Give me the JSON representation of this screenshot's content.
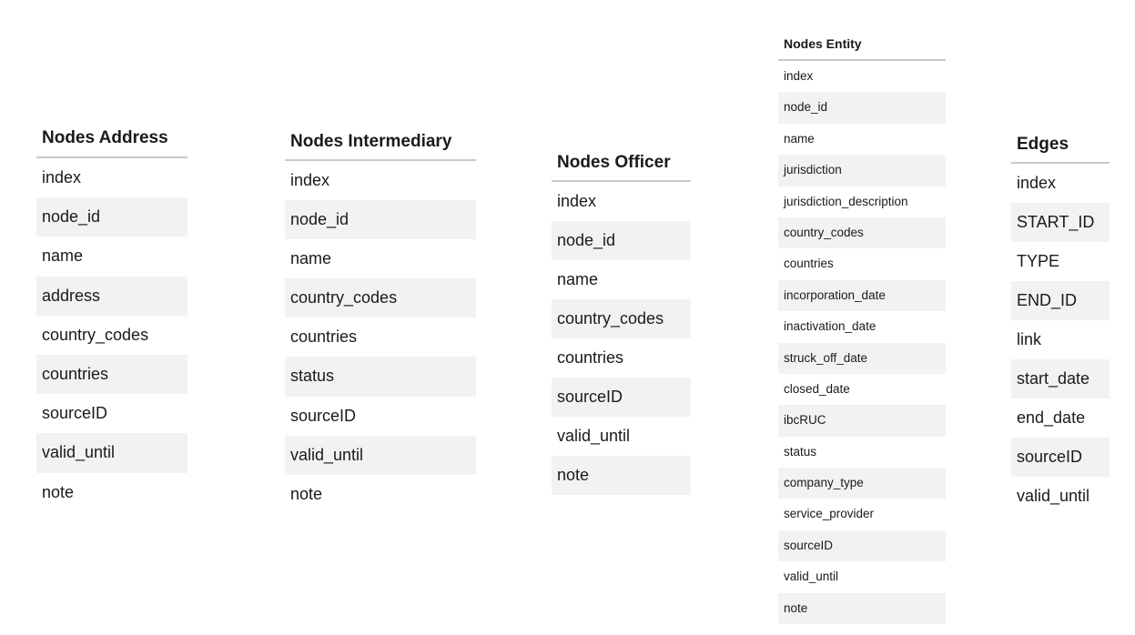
{
  "tables": {
    "address": {
      "title": "Nodes Address",
      "fields": [
        "index",
        "node_id",
        "name",
        "address",
        "country_codes",
        "countries",
        "sourceID",
        "valid_until",
        "note"
      ]
    },
    "intermediary": {
      "title": "Nodes Intermediary",
      "fields": [
        "index",
        "node_id",
        "name",
        "country_codes",
        "countries",
        "status",
        "sourceID",
        "valid_until",
        "note"
      ]
    },
    "officer": {
      "title": "Nodes Officer",
      "fields": [
        "index",
        "node_id",
        "name",
        "country_codes",
        "countries",
        "sourceID",
        "valid_until",
        "note"
      ]
    },
    "entity": {
      "title": "Nodes Entity",
      "fields": [
        "index",
        "node_id",
        "name",
        "jurisdiction",
        "jurisdiction_description",
        "country_codes",
        "countries",
        "incorporation_date",
        "inactivation_date",
        "struck_off_date",
        "closed_date",
        "ibcRUC",
        "status",
        "company_type",
        "service_provider",
        "sourceID",
        "valid_until",
        "note"
      ]
    },
    "edges": {
      "title": "Edges",
      "fields": [
        "index",
        "START_ID",
        "TYPE",
        "END_ID",
        "link",
        "start_date",
        "end_date",
        "sourceID",
        "valid_until"
      ]
    }
  }
}
